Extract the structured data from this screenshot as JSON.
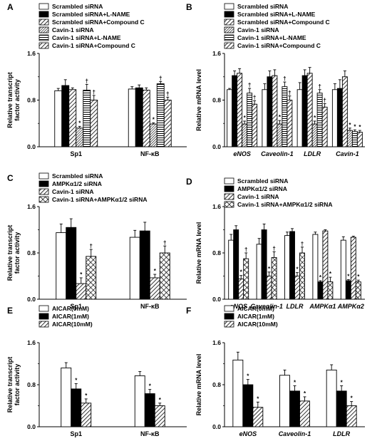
{
  "chart_data": [
    {
      "panel": "A",
      "type": "bar",
      "ylabel": [
        "Relative transcript",
        "factor activity"
      ],
      "ylim": [
        0,
        1.6
      ],
      "yticks": [
        "0.0",
        "0.8",
        "1.6"
      ],
      "categories": [
        "Sp1",
        "NF-κB"
      ],
      "italic_categories": false,
      "series": [
        {
          "name": "Scrambled siRNA",
          "pattern": "white",
          "values": [
            0.96,
            0.99
          ],
          "err": [
            0.04,
            0.04
          ],
          "marks": [
            "",
            ""
          ]
        },
        {
          "name": "Scrambled siRNA+L-NAME",
          "pattern": "black",
          "values": [
            1.05,
            1.01
          ],
          "err": [
            0.1,
            0.05
          ],
          "marks": [
            "",
            ""
          ]
        },
        {
          "name": "Scrambled siRNA+Compound C",
          "pattern": "diag",
          "values": [
            0.98,
            0.97
          ],
          "err": [
            0.03,
            0.04
          ],
          "marks": [
            "",
            ""
          ]
        },
        {
          "name": "Cavin-1 siRNA",
          "pattern": "dense",
          "values": [
            0.32,
            0.39
          ],
          "err": [
            0.03,
            0.02
          ],
          "marks": [
            "*",
            "*"
          ]
        },
        {
          "name": "Cavin-1 siRNA+L-NAME",
          "pattern": "hlines",
          "values": [
            0.97,
            1.08
          ],
          "err": [
            0.1,
            0.04
          ],
          "marks": [
            "†",
            "†"
          ]
        },
        {
          "name": "Cavin-1 siRNA+Compound C",
          "pattern": "diag",
          "values": [
            0.8,
            0.8
          ],
          "err": [
            0.08,
            0.05
          ],
          "marks": [
            "†",
            "†"
          ]
        }
      ]
    },
    {
      "panel": "B",
      "type": "bar",
      "ylabel": [
        "Relative mRNA level"
      ],
      "ylim": [
        0,
        1.6
      ],
      "yticks": [
        "0.0",
        "0.8",
        "1.6"
      ],
      "categories": [
        "eNOS",
        "Caveolin-1",
        "LDLR",
        "Cavin-1"
      ],
      "italic_categories": true,
      "series": [
        {
          "name": "Scrambled siRNA",
          "pattern": "white",
          "values": [
            0.98,
            0.98,
            0.98,
            0.98
          ],
          "err": [
            0.02,
            0.1,
            0.12,
            0.1
          ],
          "marks": [
            "",
            "",
            "",
            ""
          ]
        },
        {
          "name": "Scrambled siRNA+L-NAME",
          "pattern": "black",
          "values": [
            1.22,
            1.2,
            1.22,
            1.0
          ],
          "err": [
            0.08,
            0.1,
            0.1,
            0.15
          ],
          "marks": [
            "",
            "",
            "",
            ""
          ]
        },
        {
          "name": "Scrambled siRNA+Compound C",
          "pattern": "diag",
          "values": [
            1.26,
            1.22,
            1.26,
            1.2
          ],
          "err": [
            0.08,
            0.1,
            0.1,
            0.1
          ],
          "marks": [
            "",
            "",
            "",
            ""
          ]
        },
        {
          "name": "Cavin-1 siRNA",
          "pattern": "dense",
          "values": [
            0.39,
            0.39,
            0.39,
            0.28
          ],
          "err": [
            0.05,
            0.06,
            0.05,
            0.04
          ],
          "marks": [
            "*",
            "*",
            "*",
            "*"
          ]
        },
        {
          "name": "Cavin-1 siRNA+L-NAME",
          "pattern": "hlines",
          "values": [
            0.92,
            1.03,
            0.92,
            0.26
          ],
          "err": [
            0.08,
            0.08,
            0.06,
            0.03
          ],
          "marks": [
            "†",
            "†",
            "†",
            "*"
          ]
        },
        {
          "name": "Cavin-1 siRNA+Compound C",
          "pattern": "diag",
          "values": [
            0.73,
            0.8,
            0.68,
            0.25
          ],
          "err": [
            0.06,
            0.07,
            0.06,
            0.03
          ],
          "marks": [
            "†",
            "†",
            "†",
            "*"
          ]
        }
      ]
    },
    {
      "panel": "C",
      "type": "bar",
      "ylabel": [
        "Relative transcript",
        "factor activity"
      ],
      "ylim": [
        0,
        1.6
      ],
      "yticks": [
        "0.0",
        "0.8",
        "1.6"
      ],
      "categories": [
        "Sp1",
        "NF-κB"
      ],
      "italic_categories": false,
      "series": [
        {
          "name": "Scrambled siRNA",
          "pattern": "white",
          "values": [
            1.15,
            1.07
          ],
          "err": [
            0.15,
            0.12
          ],
          "marks": [
            "",
            ""
          ]
        },
        {
          "name": "AMPKα1/2 siRNA",
          "pattern": "black",
          "values": [
            1.24,
            1.18
          ],
          "err": [
            0.15,
            0.15
          ],
          "marks": [
            "",
            ""
          ]
        },
        {
          "name": "Cavin-1 siRNA",
          "pattern": "diag",
          "values": [
            0.27,
            0.37
          ],
          "err": [
            0.1,
            0.06
          ],
          "marks": [
            "*",
            "*"
          ]
        },
        {
          "name": "Cavin-1 siRNA+AMPKα1/2 siRNA",
          "pattern": "cross",
          "values": [
            0.74,
            0.8
          ],
          "err": [
            0.12,
            0.12
          ],
          "marks": [
            "†",
            "†"
          ]
        }
      ]
    },
    {
      "panel": "D",
      "type": "bar",
      "ylabel": [
        "Relative mRNA level"
      ],
      "ylim": [
        0,
        1.6
      ],
      "yticks": [
        "0.0",
        "0.8",
        "1.6"
      ],
      "categories": [
        "eNOS",
        "Caveolin-1",
        "LDLR",
        "AMPKα1",
        "AMPKα2"
      ],
      "italic_categories": true,
      "series": [
        {
          "name": "Scrambled siRNA",
          "pattern": "white",
          "values": [
            1.02,
            0.95,
            1.1,
            1.12,
            1.02
          ],
          "err": [
            0.1,
            0.1,
            0.06,
            0.04,
            0.06
          ],
          "marks": [
            "",
            "",
            "",
            "",
            ""
          ]
        },
        {
          "name": "AMPKα1/2 siRNA",
          "pattern": "black",
          "values": [
            1.2,
            1.2,
            1.17,
            0.3,
            0.32
          ],
          "err": [
            0.07,
            0.1,
            0.05,
            0.02,
            0.02
          ],
          "marks": [
            "",
            "",
            "",
            "*",
            "*"
          ]
        },
        {
          "name": "Cavin-1 siRNA",
          "pattern": "diag",
          "values": [
            0.35,
            0.4,
            0.4,
            1.18,
            1.07
          ],
          "err": [
            0.06,
            0.07,
            0.06,
            0.02,
            0.02
          ],
          "marks": [
            "*",
            "*",
            "*",
            "",
            ""
          ]
        },
        {
          "name": "Cavin-1 siRNA+AMPKα1/2 siRNA",
          "pattern": "cross",
          "values": [
            0.7,
            0.72,
            0.8,
            0.3,
            0.3
          ],
          "err": [
            0.1,
            0.1,
            0.1,
            0.08,
            0.03
          ],
          "marks": [
            "†",
            "†",
            "†",
            "*",
            "*"
          ]
        }
      ]
    },
    {
      "panel": "E",
      "type": "bar",
      "ylabel": [
        "Relative transcript",
        "factor activity"
      ],
      "ylim": [
        0,
        1.6
      ],
      "yticks": [
        "0.0",
        "0.8",
        "1.6"
      ],
      "categories": [
        "Sp1",
        "NF-κB"
      ],
      "italic_categories": false,
      "series": [
        {
          "name": "AICAR(0mM)",
          "pattern": "white",
          "values": [
            1.12,
            0.97
          ],
          "err": [
            0.1,
            0.08
          ],
          "marks": [
            "",
            ""
          ]
        },
        {
          "name": "AICAR(1mM)",
          "pattern": "black",
          "values": [
            0.72,
            0.63
          ],
          "err": [
            0.1,
            0.08
          ],
          "marks": [
            "*",
            "*"
          ]
        },
        {
          "name": "AICAR(10mM)",
          "pattern": "diag",
          "values": [
            0.45,
            0.4
          ],
          "err": [
            0.08,
            0.05
          ],
          "marks": [
            "*",
            "*"
          ]
        }
      ]
    },
    {
      "panel": "F",
      "type": "bar",
      "ylabel": [
        "Relative mRNA level"
      ],
      "ylim": [
        0,
        1.6
      ],
      "yticks": [
        "0.0",
        "0.8",
        "1.6"
      ],
      "categories": [
        "eNOS",
        "Caveolin-1",
        "LDLR"
      ],
      "italic_categories": true,
      "series": [
        {
          "name": "AICAR(0mM)",
          "pattern": "white",
          "values": [
            1.27,
            0.98,
            1.08
          ],
          "err": [
            0.15,
            0.1,
            0.1
          ],
          "marks": [
            "",
            "",
            ""
          ]
        },
        {
          "name": "AICAR(1mM)",
          "pattern": "black",
          "values": [
            0.8,
            0.68,
            0.68
          ],
          "err": [
            0.1,
            0.1,
            0.1
          ],
          "marks": [
            "*",
            "*",
            "*"
          ]
        },
        {
          "name": "AICAR(10mM)",
          "pattern": "diag",
          "values": [
            0.37,
            0.49,
            0.4
          ],
          "err": [
            0.1,
            0.08,
            0.08
          ],
          "marks": [
            "*",
            "*",
            "*"
          ]
        }
      ]
    }
  ]
}
